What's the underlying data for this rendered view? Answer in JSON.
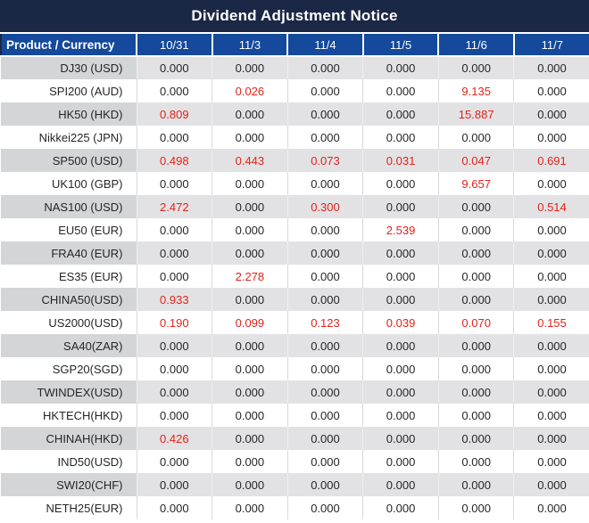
{
  "title": "Dividend Adjustment Notice",
  "colors": {
    "title_bg": "#1a2745",
    "header_bg": "#14499c",
    "header_text": "#ffffff",
    "row_gray": "#e2e2e4",
    "row_gray_label": "#d4d5d7",
    "row_white": "#ffffff",
    "value_red": "#e2231a",
    "text": "#262626"
  },
  "table": {
    "product_header": "Product / Currency",
    "date_headers": [
      "10/31",
      "11/3",
      "11/4",
      "11/5",
      "11/6",
      "11/7"
    ],
    "zero_value": "0.000",
    "rows": [
      {
        "product": "DJ30 (USD)",
        "values": [
          "0.000",
          "0.000",
          "0.000",
          "0.000",
          "0.000",
          "0.000"
        ]
      },
      {
        "product": "SPI200 (AUD)",
        "values": [
          "0.000",
          "0.026",
          "0.000",
          "0.000",
          "9.135",
          "0.000"
        ]
      },
      {
        "product": "HK50 (HKD)",
        "values": [
          "0.809",
          "0.000",
          "0.000",
          "0.000",
          "15.887",
          "0.000"
        ]
      },
      {
        "product": "Nikkei225 (JPN)",
        "values": [
          "0.000",
          "0.000",
          "0.000",
          "0.000",
          "0.000",
          "0.000"
        ]
      },
      {
        "product": "SP500 (USD)",
        "values": [
          "0.498",
          "0.443",
          "0.073",
          "0.031",
          "0.047",
          "0.691"
        ]
      },
      {
        "product": "UK100 (GBP)",
        "values": [
          "0.000",
          "0.000",
          "0.000",
          "0.000",
          "9.657",
          "0.000"
        ]
      },
      {
        "product": "NAS100 (USD)",
        "values": [
          "2.472",
          "0.000",
          "0.300",
          "0.000",
          "0.000",
          "0.514"
        ]
      },
      {
        "product": "EU50 (EUR)",
        "values": [
          "0.000",
          "0.000",
          "0.000",
          "2.539",
          "0.000",
          "0.000"
        ]
      },
      {
        "product": "FRA40 (EUR)",
        "values": [
          "0.000",
          "0.000",
          "0.000",
          "0.000",
          "0.000",
          "0.000"
        ]
      },
      {
        "product": "ES35 (EUR)",
        "values": [
          "0.000",
          "2.278",
          "0.000",
          "0.000",
          "0.000",
          "0.000"
        ]
      },
      {
        "product": "CHINA50(USD)",
        "values": [
          "0.933",
          "0.000",
          "0.000",
          "0.000",
          "0.000",
          "0.000"
        ]
      },
      {
        "product": "US2000(USD)",
        "values": [
          "0.190",
          "0.099",
          "0.123",
          "0.039",
          "0.070",
          "0.155"
        ]
      },
      {
        "product": "SA40(ZAR)",
        "values": [
          "0.000",
          "0.000",
          "0.000",
          "0.000",
          "0.000",
          "0.000"
        ]
      },
      {
        "product": "SGP20(SGD)",
        "values": [
          "0.000",
          "0.000",
          "0.000",
          "0.000",
          "0.000",
          "0.000"
        ]
      },
      {
        "product": "TWINDEX(USD)",
        "values": [
          "0.000",
          "0.000",
          "0.000",
          "0.000",
          "0.000",
          "0.000"
        ]
      },
      {
        "product": "HKTECH(HKD)",
        "values": [
          "0.000",
          "0.000",
          "0.000",
          "0.000",
          "0.000",
          "0.000"
        ]
      },
      {
        "product": "CHINAH(HKD)",
        "values": [
          "0.426",
          "0.000",
          "0.000",
          "0.000",
          "0.000",
          "0.000"
        ]
      },
      {
        "product": "IND50(USD)",
        "values": [
          "0.000",
          "0.000",
          "0.000",
          "0.000",
          "0.000",
          "0.000"
        ]
      },
      {
        "product": "SWI20(CHF)",
        "values": [
          "0.000",
          "0.000",
          "0.000",
          "0.000",
          "0.000",
          "0.000"
        ]
      },
      {
        "product": "NETH25(EUR)",
        "values": [
          "0.000",
          "0.000",
          "0.000",
          "0.000",
          "0.000",
          "0.000"
        ]
      }
    ]
  }
}
